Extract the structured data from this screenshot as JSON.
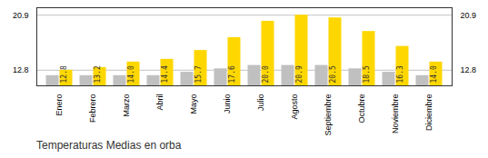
{
  "chart_data": {
    "type": "bar",
    "title": "Temperaturas Medias en orba",
    "categories": [
      "Enero",
      "Febrero",
      "Marzo",
      "Abril",
      "Mayo",
      "Junio",
      "Julio",
      "Agosto",
      "Septiembre",
      "Octubre",
      "Noviembre",
      "Diciembre"
    ],
    "series": [
      {
        "color": "#C0C0C0",
        "values": [
          12.0,
          12.0,
          12.0,
          12.0,
          12.5,
          13.0,
          13.5,
          13.5,
          13.5,
          13.0,
          12.5,
          12.0
        ]
      },
      {
        "color": "#FFD700",
        "values": [
          12.8,
          13.2,
          14.0,
          14.4,
          15.7,
          17.6,
          20.0,
          20.9,
          20.5,
          18.5,
          16.3,
          14.0
        ],
        "data_labels": true,
        "value_labels": [
          "12.8",
          "13.2",
          "14.0",
          "14.4",
          "15.7",
          "17.6",
          "20.0",
          "20.9",
          "20.5",
          "18.5",
          "16.3",
          "14.0"
        ]
      }
    ],
    "ylim": [
      10.5,
      22.0
    ],
    "yticks": [
      12.8,
      20.9
    ],
    "grid": true
  }
}
